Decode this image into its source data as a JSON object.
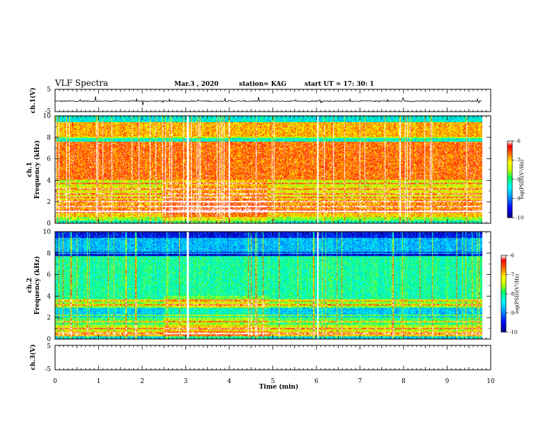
{
  "header": {
    "title": "VLF Spectra",
    "date": "Mar.3  , 2020",
    "station": "station= KAG",
    "start": "start  UT  =    17: 30: 1"
  },
  "chart_data": [
    {
      "id": "ch1-waveform",
      "type": "line",
      "ylabel": "ch.1(V)",
      "ylim": [
        -5,
        5
      ],
      "yticks": [
        "5",
        "-5"
      ],
      "xlim": [
        0,
        10
      ],
      "note": "near-zero flat trace with sparse spikes"
    },
    {
      "id": "ch1-spectrogram",
      "type": "heatmap",
      "ylabel_top": "ch.1",
      "ylabel": "Frequency (kHz)",
      "ylim": [
        0,
        10
      ],
      "yticks": [
        "0",
        "2",
        "4",
        "6",
        "8",
        "10"
      ],
      "xlim": [
        0,
        9.85
      ],
      "colorbar": {
        "label": "log(PSD)(V²/Hz)",
        "range": [
          -10,
          -6
        ],
        "ticks": [
          "-6",
          "-7",
          "-8",
          "-9",
          "-10"
        ]
      },
      "bands": [
        {
          "from": 0.0,
          "to": 0.25,
          "level": -8.2
        },
        {
          "from": 0.25,
          "to": 0.6,
          "level": -7.6
        },
        {
          "from": 0.6,
          "to": 1.0,
          "level": -7.0
        },
        {
          "from": 1.0,
          "to": 1.3,
          "level": -6.4
        },
        {
          "from": 1.3,
          "to": 2.2,
          "level": -6.8
        },
        {
          "from": 2.2,
          "to": 3.5,
          "level": -7.2
        },
        {
          "from": 3.5,
          "to": 4.0,
          "level": -7.4
        },
        {
          "from": 4.0,
          "to": 7.6,
          "level": -6.6
        },
        {
          "from": 7.6,
          "to": 8.05,
          "level": -8.3
        },
        {
          "from": 8.05,
          "to": 9.4,
          "level": -6.9
        },
        {
          "from": 9.4,
          "to": 10.0,
          "level": -8.4
        }
      ],
      "lines_khz": [
        1.1,
        1.55,
        2.0,
        2.4,
        2.7,
        3.2,
        3.7,
        8.0
      ],
      "gap_minutes": [
        3.05,
        6.05
      ]
    },
    {
      "id": "ch2-spectrogram",
      "type": "heatmap",
      "ylabel_top": "ch.2",
      "ylabel": "Frequency (kHz)",
      "ylim": [
        0,
        10
      ],
      "yticks": [
        "0",
        "2",
        "4",
        "6",
        "8",
        "10"
      ],
      "xlim": [
        0,
        9.85
      ],
      "colorbar": {
        "label": "log(PSD)(V²/Hz)",
        "range": [
          -10,
          -6
        ],
        "ticks": [
          "-6",
          "-7",
          "-8",
          "-9",
          "-10"
        ]
      },
      "bands": [
        {
          "from": 0.0,
          "to": 0.25,
          "level": -8.5
        },
        {
          "from": 0.25,
          "to": 0.7,
          "level": -7.0
        },
        {
          "from": 0.7,
          "to": 1.3,
          "level": -7.4
        },
        {
          "from": 1.3,
          "to": 2.0,
          "level": -7.9
        },
        {
          "from": 2.0,
          "to": 2.9,
          "level": -8.6
        },
        {
          "from": 2.9,
          "to": 3.6,
          "level": -7.6
        },
        {
          "from": 3.6,
          "to": 7.7,
          "level": -8.1
        },
        {
          "from": 7.7,
          "to": 8.1,
          "level": -9.7
        },
        {
          "from": 8.1,
          "to": 9.4,
          "level": -8.7
        },
        {
          "from": 9.4,
          "to": 10.0,
          "level": -9.5
        }
      ],
      "lines_khz": [
        0.5,
        1.0,
        1.6,
        2.2,
        3.2,
        3.6,
        8.0
      ],
      "gap_minutes": [
        3.05,
        6.05
      ]
    },
    {
      "id": "ch3-waveform",
      "type": "line",
      "ylabel": "ch.3(V)",
      "ylim": [
        -5,
        5
      ],
      "yticks": [
        "5",
        "-5"
      ],
      "xlim": [
        0,
        10
      ],
      "note": "empty panel"
    }
  ],
  "x_axis": {
    "label": "Time  (min)",
    "ticks": [
      "0",
      "1",
      "2",
      "3",
      "4",
      "5",
      "6",
      "7",
      "8",
      "9",
      "10"
    ],
    "range": [
      0,
      10
    ]
  },
  "colors": {
    "axis": "#000000",
    "background": "#ffffff",
    "colormap": [
      "#000080",
      "#0000ff",
      "#00a0ff",
      "#00ffff",
      "#00ff60",
      "#c8ff00",
      "#ffff00",
      "#ff8000",
      "#ff0000",
      "#ffffff"
    ]
  }
}
